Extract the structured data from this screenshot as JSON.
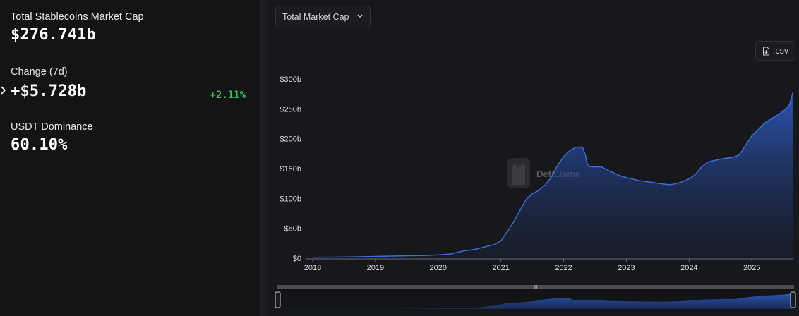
{
  "stats": {
    "market_cap_label": "Total Stablecoins Market Cap",
    "market_cap_value": "$276.741b",
    "change_label": "Change (7d)",
    "change_value": "+$5.728b",
    "change_pct": "+2.11%",
    "dominance_label": "USDT Dominance",
    "dominance_value": "60.10%"
  },
  "toolbar": {
    "metric_select_label": "Total Market Cap",
    "csv_label": ".csv"
  },
  "watermark": "DefiLlama",
  "colors": {
    "accent": "#3b6fe0",
    "positive": "#3fbd5c",
    "background": "#131416"
  },
  "icons": {
    "select": "chevron-down-icon",
    "csv": "file-download-icon",
    "expand": "chevron-right-icon"
  },
  "chart_data": {
    "type": "area",
    "ylabel": "",
    "xlabel": "",
    "ylim": [
      0,
      300
    ],
    "y_ticks": [
      0,
      50,
      100,
      150,
      200,
      250,
      300
    ],
    "y_tick_labels": [
      "$0",
      "$50b",
      "$100b",
      "$150b",
      "$200b",
      "$250b",
      "$300b"
    ],
    "x_tick_labels": [
      "2018",
      "2019",
      "2020",
      "2021",
      "2022",
      "2023",
      "2024",
      "2025"
    ],
    "x_ticks": [
      2018,
      2019,
      2020,
      2021,
      2022,
      2023,
      2024,
      2025
    ],
    "xlim": [
      2018.0,
      2025.65
    ],
    "grid": false,
    "series": [
      {
        "x": [
          2018.0,
          2018.5,
          2019.0,
          2019.5,
          2019.8,
          2020.0,
          2020.2,
          2020.4,
          2020.6,
          2020.75,
          2020.9,
          2021.0,
          2021.1,
          2021.2,
          2021.3,
          2021.4,
          2021.45,
          2021.5,
          2021.6,
          2021.7,
          2021.8,
          2021.9,
          2022.0,
          2022.1,
          2022.2,
          2022.3,
          2022.35,
          2022.37,
          2022.4,
          2022.45,
          2022.6,
          2022.75,
          2022.9,
          2023.0,
          2023.2,
          2023.4,
          2023.6,
          2023.7,
          2023.8,
          2023.9,
          2024.0,
          2024.1,
          2024.2,
          2024.3,
          2024.5,
          2024.7,
          2024.8,
          2024.9,
          2025.0,
          2025.1,
          2025.2,
          2025.3,
          2025.4,
          2025.5,
          2025.6,
          2025.65
        ],
        "y": [
          1.5,
          2,
          3,
          4,
          4.5,
          5.5,
          7,
          12,
          15,
          19,
          23,
          29,
          44,
          60,
          79,
          98,
          103,
          108,
          113,
          122,
          135,
          155,
          170,
          180,
          186,
          186,
          172,
          160,
          154,
          153,
          153,
          145,
          138,
          135,
          130,
          127,
          124,
          123,
          125,
          128,
          133,
          140,
          153,
          161,
          166,
          169,
          173,
          189,
          205,
          215,
          226,
          233,
          239,
          246,
          257,
          277
        ]
      }
    ]
  }
}
